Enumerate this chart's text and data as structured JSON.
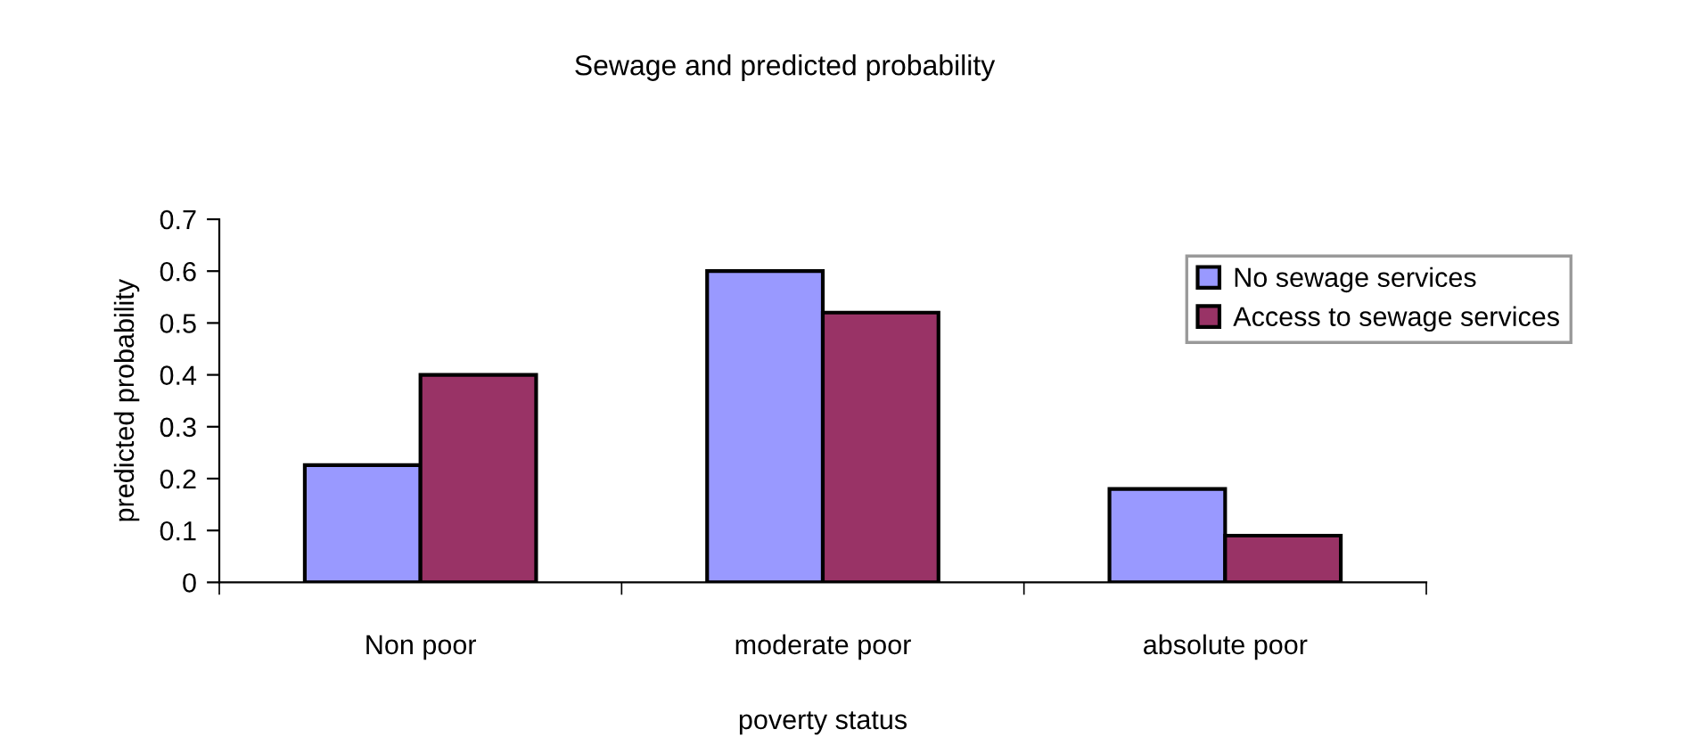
{
  "chart_data": {
    "type": "bar",
    "title": "Sewage and predicted probability",
    "xlabel": "poverty status",
    "ylabel": "predicted probability",
    "categories": [
      "Non poor",
      "moderate poor",
      "absolute poor"
    ],
    "series": [
      {
        "name": "No sewage services",
        "color": "#9999ff",
        "values": [
          0.226,
          0.6,
          0.18
        ]
      },
      {
        "name": "Access to sewage services",
        "color": "#993366",
        "values": [
          0.4,
          0.52,
          0.09
        ]
      }
    ],
    "ylim": [
      0,
      0.7
    ],
    "yticks": [
      0,
      0.1,
      0.2,
      0.3,
      0.4,
      0.5,
      0.6,
      0.7
    ],
    "grid": false,
    "legend": "top right"
  }
}
